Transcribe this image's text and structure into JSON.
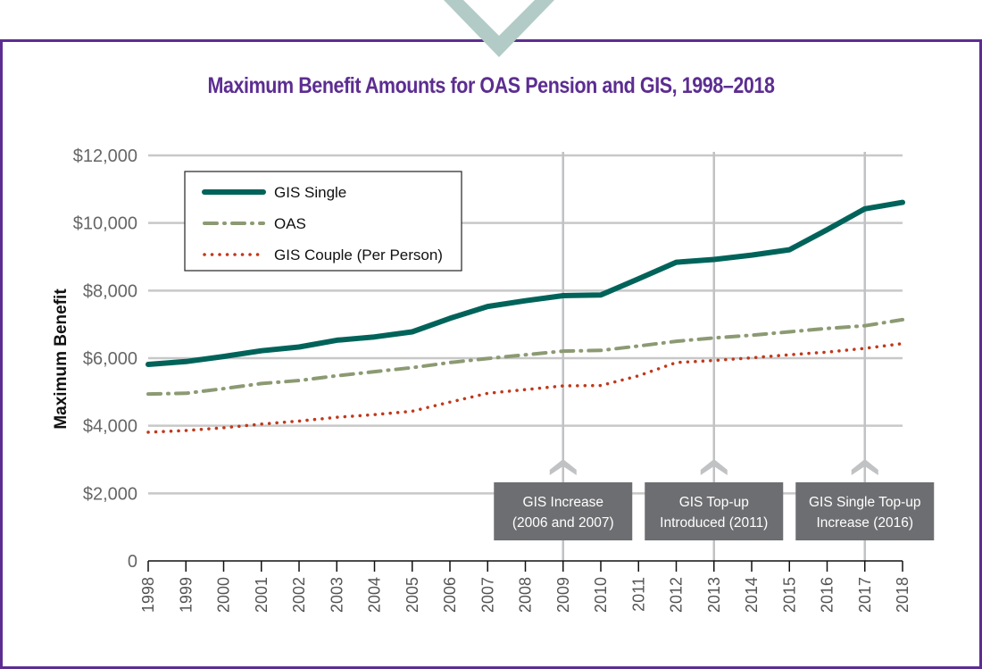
{
  "chart_data": {
    "type": "line",
    "title": "Maximum Benefit Amounts for OAS Pension and GIS, 1998–2018",
    "xlabel": "",
    "ylabel": "Maximum Benefit",
    "ylim": [
      0,
      12000
    ],
    "yticks": [
      0,
      2000,
      4000,
      6000,
      8000,
      10000,
      12000
    ],
    "ytick_labels": [
      "0",
      "$2,000",
      "$4,000",
      "$6,000",
      "$8,000",
      "$10,000",
      "$12,000"
    ],
    "grid": "horizontal",
    "legend_position": "top-left",
    "x": [
      "1998",
      "1999",
      "2000",
      "2001",
      "2002",
      "2003",
      "2004",
      "2005",
      "2006",
      "2007",
      "2008",
      "2009",
      "2010",
      "2011",
      "2012",
      "2013",
      "2014",
      "2015",
      "2016",
      "2017",
      "2018"
    ],
    "series": [
      {
        "name": "GIS Single",
        "style": "solid",
        "color": "#00635a",
        "values": [
          5815,
          5900,
          6050,
          6220,
          6330,
          6530,
          6630,
          6780,
          7180,
          7530,
          7700,
          7850,
          7870,
          8350,
          8840,
          8920,
          9050,
          9210,
          9800,
          10420,
          10610
        ]
      },
      {
        "name": "OAS",
        "style": "dash-dot",
        "color": "#8c9a73",
        "values": [
          4940,
          4960,
          5100,
          5250,
          5340,
          5480,
          5600,
          5720,
          5870,
          5990,
          6100,
          6210,
          6230,
          6360,
          6500,
          6600,
          6680,
          6780,
          6880,
          6960,
          7140
        ]
      },
      {
        "name": "GIS Couple (Per Person)",
        "style": "dotted",
        "color": "#c0391b",
        "values": [
          3810,
          3860,
          3940,
          4050,
          4140,
          4250,
          4330,
          4430,
          4700,
          4960,
          5070,
          5180,
          5190,
          5480,
          5870,
          5930,
          6010,
          6100,
          6180,
          6290,
          6430
        ]
      }
    ],
    "annotations": [
      {
        "x": "2009",
        "line1": "GIS Increase",
        "line2": "(2006 and 2007)"
      },
      {
        "x": "2013",
        "line1": "GIS Top-up",
        "line2": "Introduced (2011)"
      },
      {
        "x": "2017",
        "line1": "GIS Single Top-up",
        "line2": "Increase (2016)"
      }
    ]
  },
  "colors": {
    "frame": "#5c2d91",
    "title": "#5c2d91",
    "chevron": "#b2cbc6",
    "grid": "#c8c8c8",
    "annotation_box": "#6d6e71",
    "annotation_marker": "#c0c2c4"
  }
}
